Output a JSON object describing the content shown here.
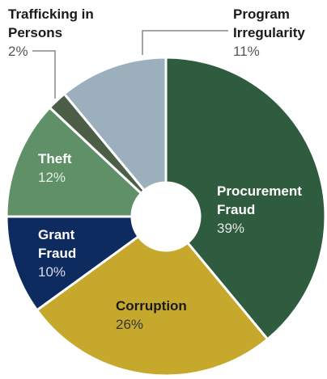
{
  "chart_data": {
    "type": "donut",
    "categories": [
      "Procurement Fraud",
      "Corruption",
      "Grant Fraud",
      "Theft",
      "Trafficking in Persons",
      "Program Irregularity"
    ],
    "values": [
      39,
      26,
      10,
      12,
      2,
      11
    ],
    "value_labels": [
      "39%",
      "26%",
      "10%",
      "12%",
      "2%",
      "11%"
    ],
    "colors": [
      "#2f5b3f",
      "#c6a92c",
      "#0d2b5f",
      "#5f9068",
      "#4d5e47",
      "#9bb0bc"
    ]
  }
}
